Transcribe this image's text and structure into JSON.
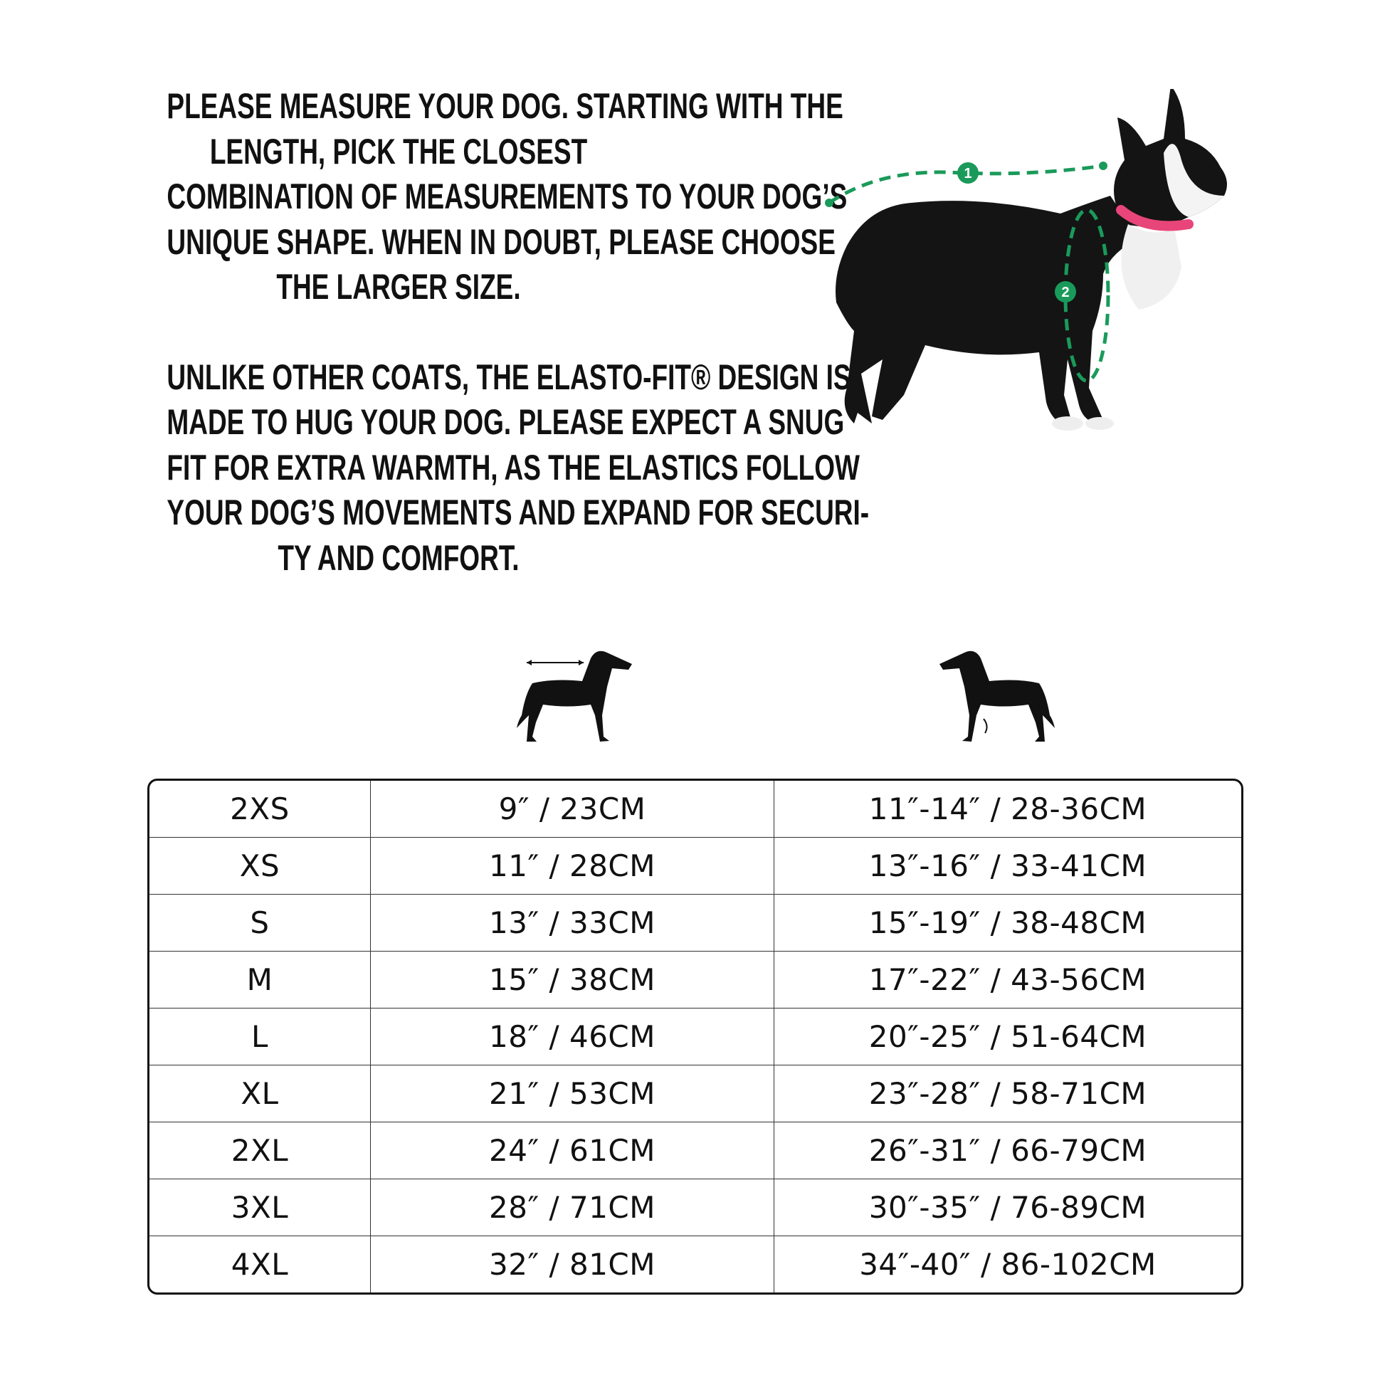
{
  "intro": {
    "paragraph1": [
      "PLEASE MEASURE YOUR DOG. STARTING WITH THE",
      "LENGTH, PICK THE CLOSEST",
      "COMBINATION OF MEASUREMENTS TO YOUR DOG’S",
      "UNIQUE SHAPE. WHEN IN DOUBT, PLEASE CHOOSE",
      "THE LARGER SIZE."
    ],
    "paragraph2": [
      "UNLIKE OTHER COATS, THE ELASTO-FIT® DESIGN IS",
      "MADE TO HUG YOUR DOG. PLEASE EXPECT A SNUG",
      "FIT FOR EXTRA WARMTH, AS THE ELASTICS FOLLOW",
      "YOUR DOG’S MOVEMENTS AND EXPAND FOR SECURI-",
      "TY AND COMFORT."
    ]
  },
  "photo": {
    "markers": [
      "1",
      "2"
    ],
    "accent_color": "#1a9a5a",
    "collar_color": "#e8457a"
  },
  "icons": {
    "length": "dog-length-icon",
    "chest": "dog-chest-icon"
  },
  "size_table": {
    "rows": [
      [
        "2XS",
        "9″ / 23CM",
        "11″-14″ / 28-36CM"
      ],
      [
        "XS",
        "11″ / 28CM",
        "13″-16″ / 33-41CM"
      ],
      [
        "S",
        "13″ / 33CM",
        "15″-19″ / 38-48CM"
      ],
      [
        "M",
        "15″ / 38CM",
        "17″-22″ / 43-56CM"
      ],
      [
        "L",
        "18″ / 46CM",
        "20″-25″ / 51-64CM"
      ],
      [
        "XL",
        "21″ / 53CM",
        "23″-28″ / 58-71CM"
      ],
      [
        "2XL",
        "24″ / 61CM",
        "26″-31″ / 66-79CM"
      ],
      [
        "3XL",
        "28″ / 71CM",
        "30″-35″ / 76-89CM"
      ],
      [
        "4XL",
        "32″ / 81CM",
        "34″-40″ / 86-102CM"
      ]
    ]
  }
}
